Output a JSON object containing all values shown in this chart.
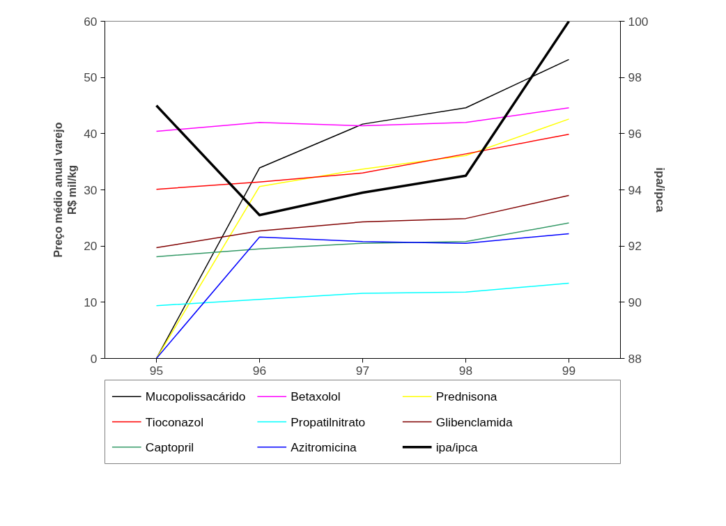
{
  "chart_data": {
    "type": "line",
    "categories": [
      "95",
      "96",
      "97",
      "98",
      "99"
    ],
    "ylabel": "Preço médio anual varejo\nR$ mil/kg",
    "y2label": "ipa/ipca",
    "ylim": [
      0,
      60
    ],
    "yticks": [
      0,
      10,
      20,
      30,
      40,
      50,
      60
    ],
    "y2lim": [
      88,
      100
    ],
    "y2ticks": [
      88,
      90,
      92,
      94,
      96,
      98,
      100
    ],
    "grid": false,
    "legend": "bottom",
    "series": [
      {
        "name": "Mucopolissacárido",
        "color": "#000000",
        "values": [
          0,
          33.9,
          41.7,
          44.6,
          53.2
        ]
      },
      {
        "name": "Betaxolol",
        "color": "#ff00ff",
        "values": [
          40.4,
          42.0,
          41.4,
          42.0,
          44.6
        ]
      },
      {
        "name": "Prednisona",
        "color": "#ffff00",
        "values": [
          0,
          30.6,
          33.7,
          36.1,
          42.6
        ]
      },
      {
        "name": "Tioconazol",
        "color": "#ff0000",
        "values": [
          30.1,
          31.4,
          33.0,
          36.4,
          39.9
        ]
      },
      {
        "name": "Propatilnitrato",
        "color": "#00ffff",
        "values": [
          9.4,
          10.5,
          11.6,
          11.8,
          13.4
        ]
      },
      {
        "name": "Glibenclamida",
        "color": "#800000",
        "values": [
          19.7,
          22.7,
          24.3,
          24.9,
          29.0
        ]
      },
      {
        "name": "Captopril",
        "color": "#339966",
        "values": [
          18.1,
          19.5,
          20.5,
          20.8,
          24.1
        ]
      },
      {
        "name": "Azitromicina",
        "color": "#0000ff",
        "values": [
          0,
          21.6,
          20.8,
          20.5,
          22.2
        ]
      },
      {
        "name": "ipa/ipca",
        "color": "#000000",
        "axis": "y2",
        "values": [
          97.0,
          93.1,
          93.9,
          94.5,
          100
        ]
      }
    ]
  }
}
